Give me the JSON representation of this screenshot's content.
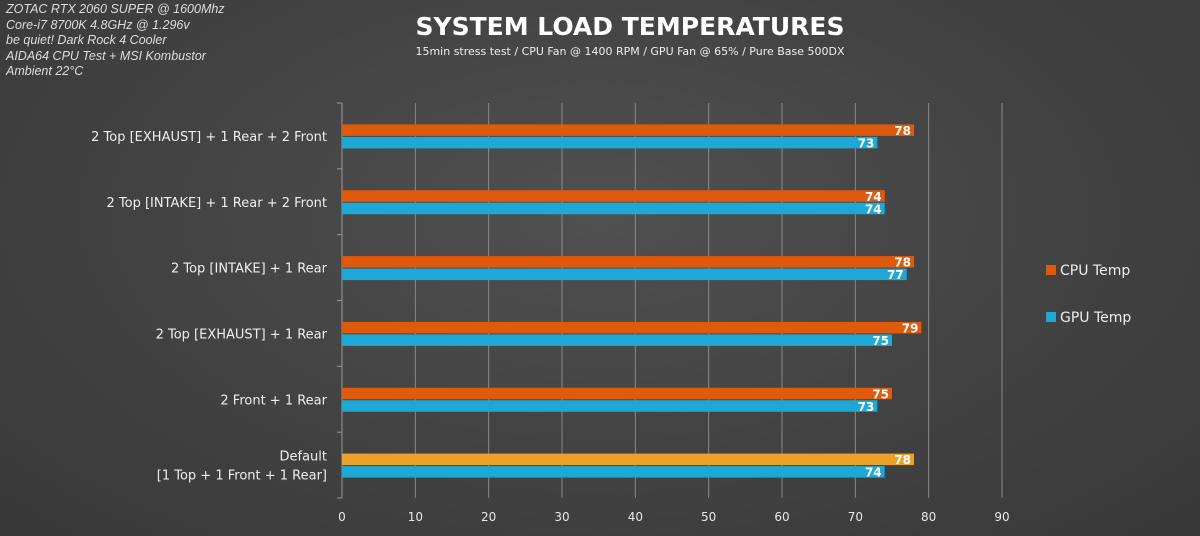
{
  "notes": [
    "ZOTAC RTX 2060 SUPER @ 1600Mhz",
    "Core-i7 8700K 4.8GHz @ 1.296v",
    "be quiet! Dark Rock 4 Cooler",
    "AIDA64 CPU Test + MSI Kombustor",
    "Ambient 22°C"
  ],
  "chart_data": {
    "type": "bar",
    "orientation": "horizontal",
    "title": "SYSTEM LOAD TEMPERATURES",
    "subtitle": "15min stress test / CPU Fan @ 1400 RPM / GPU Fan @ 65% / Pure Base 500DX",
    "categories": [
      [
        "2 Top [EXHAUST] + 1 Rear + 2 Front"
      ],
      [
        "2 Top [INTAKE] + 1 Rear + 2 Front"
      ],
      [
        "2 Top [INTAKE] + 1 Rear"
      ],
      [
        "2 Top [EXHAUST] + 1 Rear"
      ],
      [
        "2 Front + 1 Rear"
      ],
      [
        "Default",
        "[1 Top + 1 Front + 1 Rear]"
      ]
    ],
    "series": [
      {
        "name": "CPU Temp",
        "color": "#e05a0e",
        "values": [
          78,
          74,
          78,
          79,
          75,
          78
        ]
      },
      {
        "name": "GPU Temp",
        "color": "#1ea8d6",
        "values": [
          73,
          74,
          77,
          75,
          73,
          74
        ]
      }
    ],
    "highlight": {
      "category_index": 5,
      "series_index": 0,
      "color": "#eaa22a"
    },
    "xlim": [
      0,
      90
    ],
    "xticks": [
      0,
      10,
      20,
      30,
      40,
      50,
      60,
      70,
      80,
      90
    ],
    "grid": true,
    "legend": "right",
    "data_labels": true
  }
}
